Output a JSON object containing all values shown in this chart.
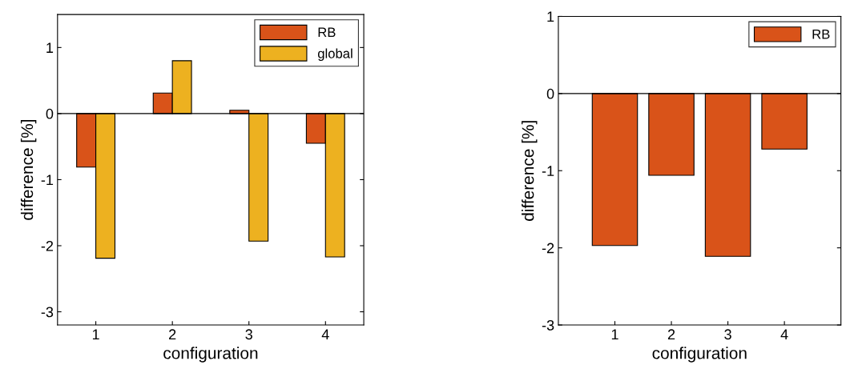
{
  "chart_data": [
    {
      "type": "bar",
      "x": [
        1,
        2,
        3,
        4
      ],
      "xlabel": "configuration",
      "ylabel": "difference [%]",
      "series": [
        {
          "name": "RB",
          "color": "#d95319",
          "values": [
            -0.81,
            0.31,
            0.05,
            -0.45
          ]
        },
        {
          "name": "global",
          "color": "#edb120",
          "values": [
            -2.19,
            0.8,
            -1.93,
            -2.17
          ]
        }
      ],
      "xlim": [
        0.5,
        4.5
      ],
      "xticks": [
        1,
        2,
        3,
        4
      ],
      "ylim": [
        -3.2,
        1.5
      ],
      "yticks": [
        -3,
        -2,
        -1,
        0,
        1
      ],
      "ref_lines": [
        {
          "axis": "y",
          "value": 0,
          "color": "#000000"
        }
      ],
      "legend": "top right",
      "grid": false
    },
    {
      "type": "bar",
      "x": [
        1,
        2,
        3,
        4
      ],
      "xlabel": "configuration",
      "ylabel": "difference [%]",
      "series": [
        {
          "name": "RB",
          "color": "#d95319",
          "values": [
            -1.97,
            -1.06,
            -2.11,
            -0.72
          ]
        }
      ],
      "xlim": [
        0,
        5
      ],
      "xticks": [
        1,
        2,
        3,
        4
      ],
      "ylim": [
        -3,
        1
      ],
      "yticks": [
        -3,
        -2,
        -1,
        0,
        1
      ],
      "ref_lines": [
        {
          "axis": "y",
          "value": 0,
          "color": "#000000"
        }
      ],
      "legend": "top right",
      "grid": false
    }
  ]
}
